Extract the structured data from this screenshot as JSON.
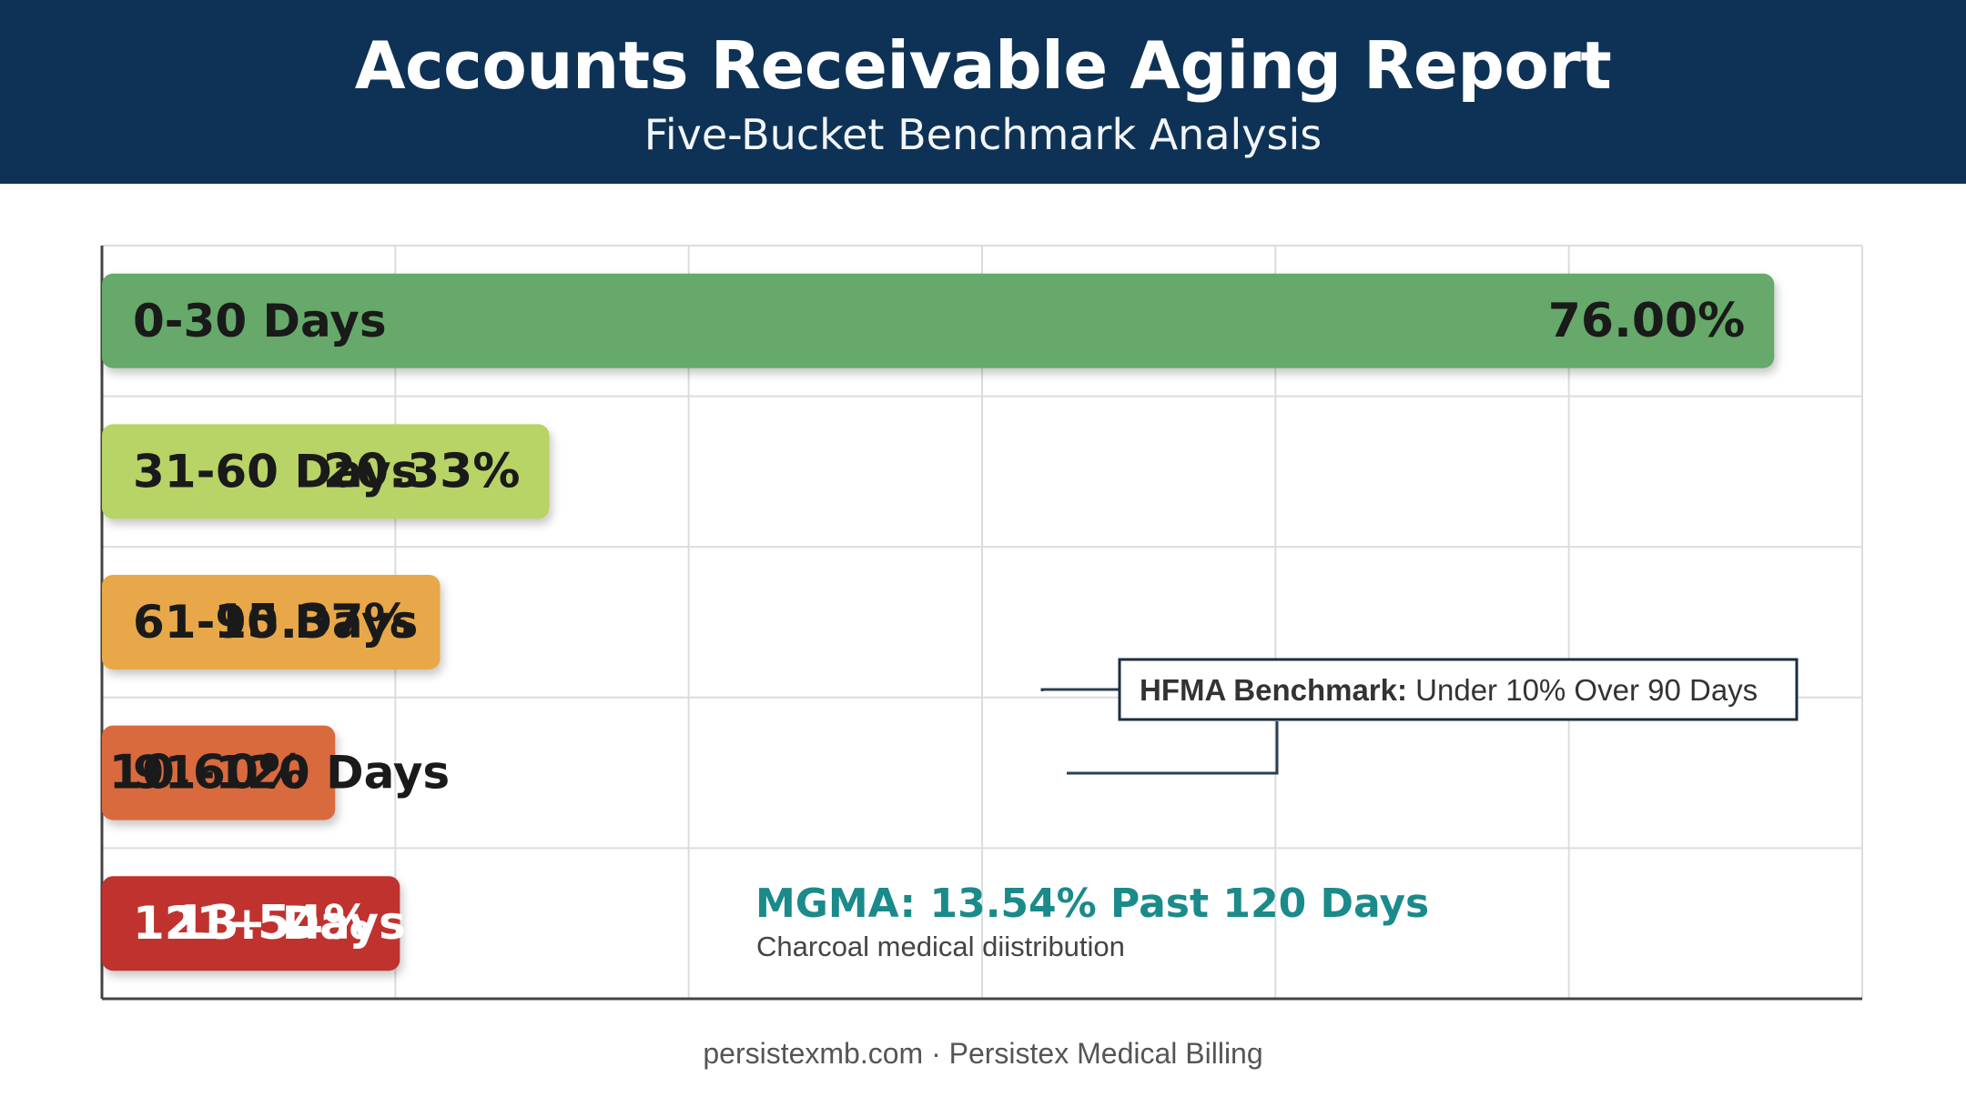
{
  "header": {
    "title": "Accounts Receivable Aging Report",
    "subtitle": "Five-Bucket Benchmark Analysis"
  },
  "chart_data": {
    "type": "bar",
    "orientation": "horizontal",
    "title": "Accounts Receivable Aging Report",
    "subtitle": "Five-Bucket Benchmark Analysis",
    "categories": [
      "0-30 Days",
      "31-60 Days",
      "61-90 Days",
      "91-120 Days",
      "121+ Days"
    ],
    "values": [
      76.0,
      20.33,
      15.37,
      10.6,
      13.54
    ],
    "value_labels": [
      "76.00%",
      "20.33%",
      "15.37%",
      "10.60%",
      "13.54%"
    ],
    "colors": [
      "#66a96a",
      "#b8d366",
      "#e8a84a",
      "#d96a3d",
      "#c0312e"
    ],
    "xlim": [
      0,
      80
    ],
    "grid": true,
    "xlabel": "",
    "ylabel": "",
    "annotations": {
      "hfma": {
        "label_bold": "HFMA Benchmark:",
        "label_rest": " Under 10% Over 90 Days"
      },
      "mgma": {
        "title": "MGMA: 13.54% Past 120 Days",
        "note": "Charcoal medical diistribution"
      }
    }
  },
  "colors": {
    "header_bg": "#0e3255",
    "annotation_teal": "#1a8a8a",
    "grid": "#dcdcdc",
    "axis": "#444444"
  },
  "footer": {
    "text": "persistexmb.com · Persistex Medical Billing"
  }
}
